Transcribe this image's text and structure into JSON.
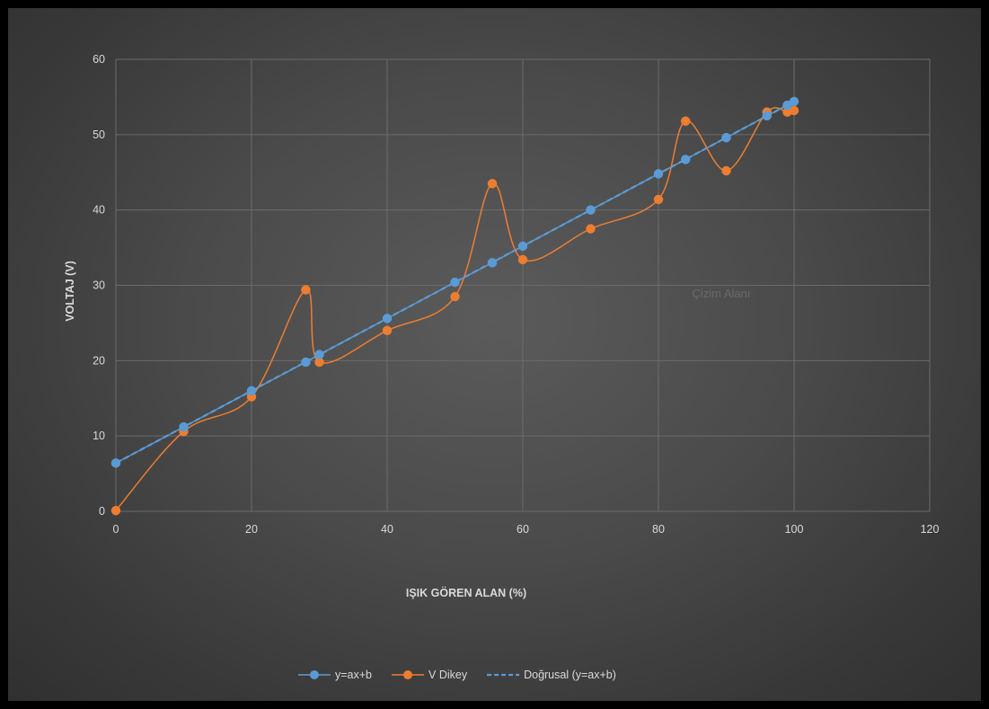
{
  "chart_data": {
    "type": "scatter",
    "title": "",
    "xlabel": "IŞIK GÖREN ALAN (%)",
    "ylabel": "VOLTAJ (V)",
    "xlim": [
      0,
      120
    ],
    "ylim": [
      0,
      60
    ],
    "x_ticks": [
      0,
      20,
      40,
      60,
      80,
      100,
      120
    ],
    "y_ticks": [
      0,
      10,
      20,
      30,
      40,
      50,
      60
    ],
    "grid": true,
    "legend_position": "bottom",
    "watermark": "Çizim Alanı",
    "series": [
      {
        "name": "y=ax+b",
        "color": "#5b9bd5",
        "style": "line-with-markers",
        "x": [
          0,
          10,
          20,
          28,
          30,
          40,
          50,
          55.5,
          60,
          70,
          80,
          84,
          90,
          96,
          99,
          100
        ],
        "y": [
          6.4,
          11.2,
          16.0,
          19.8,
          20.8,
          25.6,
          30.4,
          33.0,
          35.2,
          40.0,
          44.8,
          46.7,
          49.6,
          52.5,
          53.9,
          54.4
        ]
      },
      {
        "name": "V Dikey",
        "color": "#ed7d31",
        "style": "smooth-line-with-markers",
        "x": [
          0,
          10,
          20,
          28,
          30,
          40,
          50,
          55.5,
          60,
          70,
          80,
          84,
          90,
          96,
          99,
          100
        ],
        "y": [
          0.1,
          10.6,
          15.2,
          29.4,
          19.8,
          24.0,
          28.5,
          43.5,
          33.4,
          37.5,
          41.4,
          51.8,
          45.2,
          53.0,
          53.0,
          53.2
        ]
      },
      {
        "name": "Doğrusal (y=ax+b)",
        "color": "#5b9bd5",
        "style": "dashed-trendline",
        "x": [
          0,
          100
        ],
        "y": [
          6.4,
          54.4
        ]
      }
    ]
  }
}
